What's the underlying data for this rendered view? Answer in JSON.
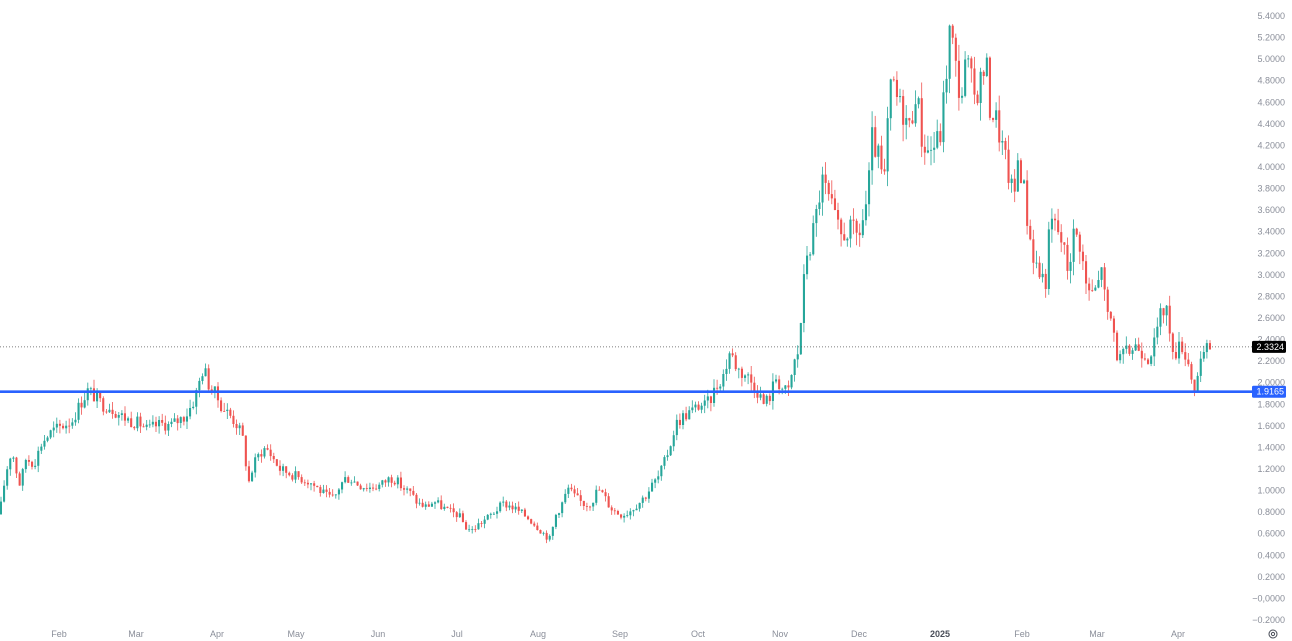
{
  "chart_data": {
    "type": "candlestick",
    "colors": {
      "up": "#26a69a",
      "down": "#ef5350",
      "support_line": "#2962ff",
      "current_badge": "#000000",
      "support_badge": "#2962ff"
    },
    "y_axis": {
      "ylim": [
        -0.2,
        5.4
      ],
      "ticks": [
        "5.4000",
        "5.2000",
        "5.0000",
        "4.8000",
        "4.6000",
        "4.4000",
        "4.2000",
        "4.0000",
        "3.8000",
        "3.6000",
        "3.4000",
        "3.2000",
        "3.0000",
        "2.8000",
        "2.6000",
        "2.4000",
        "2.2000",
        "2.0000",
        "1.8000",
        "1.6000",
        "1.4000",
        "1.2000",
        "1.0000",
        "0.8000",
        "0.6000",
        "0.4000",
        "0.2000",
        "−0,0000",
        "−0.2000"
      ]
    },
    "x_axis": {
      "months": [
        "Feb",
        "Mar",
        "Apr",
        "May",
        "Jun",
        "Jul",
        "Aug",
        "Sep",
        "Oct",
        "Nov",
        "Dec",
        "2025",
        "Feb",
        "Mar",
        "Apr"
      ],
      "emphasized": "2025"
    },
    "current_price": "2.3324",
    "support_level": "1.9165",
    "key_points": [
      [
        0,
        0.78
      ],
      [
        2,
        0.95
      ],
      [
        8,
        1.25
      ],
      [
        12,
        1.38
      ],
      [
        16,
        1.2
      ],
      [
        20,
        1.05
      ],
      [
        26,
        1.3
      ],
      [
        34,
        1.25
      ],
      [
        42,
        1.45
      ],
      [
        52,
        1.55
      ],
      [
        62,
        1.6
      ],
      [
        72,
        1.65
      ],
      [
        80,
        1.8
      ],
      [
        88,
        1.93
      ],
      [
        95,
        1.87
      ],
      [
        102,
        1.8
      ],
      [
        110,
        1.78
      ],
      [
        120,
        1.7
      ],
      [
        130,
        1.65
      ],
      [
        140,
        1.62
      ],
      [
        148,
        1.56
      ],
      [
        155,
        1.6
      ],
      [
        163,
        1.62
      ],
      [
        170,
        1.6
      ],
      [
        178,
        1.65
      ],
      [
        186,
        1.7
      ],
      [
        193,
        1.82
      ],
      [
        198,
        1.95
      ],
      [
        202,
        2.12
      ],
      [
        206,
        2.08
      ],
      [
        210,
        1.95
      ],
      [
        215,
        1.9
      ],
      [
        222,
        1.78
      ],
      [
        230,
        1.7
      ],
      [
        238,
        1.6
      ],
      [
        244,
        1.45
      ],
      [
        248,
        1.05
      ],
      [
        254,
        1.25
      ],
      [
        260,
        1.35
      ],
      [
        266,
        1.4
      ],
      [
        272,
        1.32
      ],
      [
        280,
        1.2
      ],
      [
        290,
        1.16
      ],
      [
        300,
        1.12
      ],
      [
        310,
        1.08
      ],
      [
        318,
        1.02
      ],
      [
        326,
        0.95
      ],
      [
        334,
        0.92
      ],
      [
        340,
        1.05
      ],
      [
        346,
        1.12
      ],
      [
        352,
        1.1
      ],
      [
        360,
        1.05
      ],
      [
        370,
        1.03
      ],
      [
        380,
        1.05
      ],
      [
        390,
        1.12
      ],
      [
        396,
        1.1
      ],
      [
        402,
        1.03
      ],
      [
        410,
        0.98
      ],
      [
        418,
        0.88
      ],
      [
        426,
        0.85
      ],
      [
        434,
        0.9
      ],
      [
        442,
        0.85
      ],
      [
        450,
        0.8
      ],
      [
        458,
        0.78
      ],
      [
        466,
        0.66
      ],
      [
        472,
        0.63
      ],
      [
        480,
        0.7
      ],
      [
        488,
        0.75
      ],
      [
        496,
        0.82
      ],
      [
        504,
        0.88
      ],
      [
        512,
        0.85
      ],
      [
        520,
        0.8
      ],
      [
        528,
        0.75
      ],
      [
        536,
        0.68
      ],
      [
        544,
        0.6
      ],
      [
        550,
        0.55
      ],
      [
        556,
        0.78
      ],
      [
        562,
        0.88
      ],
      [
        568,
        1.02
      ],
      [
        574,
        0.95
      ],
      [
        580,
        0.9
      ],
      [
        586,
        0.87
      ],
      [
        592,
        0.9
      ],
      [
        598,
        1.02
      ],
      [
        604,
        0.95
      ],
      [
        610,
        0.85
      ],
      [
        616,
        0.8
      ],
      [
        622,
        0.78
      ],
      [
        628,
        0.8
      ],
      [
        634,
        0.85
      ],
      [
        640,
        0.9
      ],
      [
        646,
        0.96
      ],
      [
        652,
        1.05
      ],
      [
        658,
        1.12
      ],
      [
        664,
        1.25
      ],
      [
        670,
        1.42
      ],
      [
        676,
        1.62
      ],
      [
        682,
        1.68
      ],
      [
        688,
        1.72
      ],
      [
        694,
        1.75
      ],
      [
        700,
        1.8
      ],
      [
        706,
        1.78
      ],
      [
        712,
        1.88
      ],
      [
        718,
        2.0
      ],
      [
        724,
        2.08
      ],
      [
        730,
        2.3
      ],
      [
        734,
        2.2
      ],
      [
        740,
        2.1
      ],
      [
        746,
        2.08
      ],
      [
        752,
        2.0
      ],
      [
        758,
        1.92
      ],
      [
        764,
        1.8
      ],
      [
        770,
        1.88
      ],
      [
        776,
        2.05
      ],
      [
        782,
        1.95
      ],
      [
        788,
        1.9
      ],
      [
        794,
        2.18
      ],
      [
        798,
        2.28
      ],
      [
        802,
        2.7
      ],
      [
        806,
        3.2
      ],
      [
        810,
        3.25
      ],
      [
        816,
        3.55
      ],
      [
        822,
        3.88
      ],
      [
        828,
        3.72
      ],
      [
        834,
        3.55
      ],
      [
        840,
        3.35
      ],
      [
        846,
        3.4
      ],
      [
        852,
        3.42
      ],
      [
        858,
        3.35
      ],
      [
        864,
        3.55
      ],
      [
        868,
        3.75
      ],
      [
        872,
        4.25
      ],
      [
        878,
        4.1
      ],
      [
        884,
        3.8
      ],
      [
        888,
        4.45
      ],
      [
        892,
        4.82
      ],
      [
        898,
        4.6
      ],
      [
        904,
        4.5
      ],
      [
        910,
        4.35
      ],
      [
        916,
        4.75
      ],
      [
        922,
        4.25
      ],
      [
        928,
        4.15
      ],
      [
        934,
        4.2
      ],
      [
        940,
        4.28
      ],
      [
        946,
        4.85
      ],
      [
        950,
        5.3
      ],
      [
        954,
        5.05
      ],
      [
        958,
        4.75
      ],
      [
        962,
        4.7
      ],
      [
        966,
        4.98
      ],
      [
        970,
        4.85
      ],
      [
        974,
        4.65
      ],
      [
        980,
        4.78
      ],
      [
        986,
        4.98
      ],
      [
        990,
        4.55
      ],
      [
        996,
        4.45
      ],
      [
        1002,
        4.2
      ],
      [
        1008,
        3.95
      ],
      [
        1014,
        3.7
      ],
      [
        1018,
        4.1
      ],
      [
        1024,
        3.8
      ],
      [
        1028,
        3.45
      ],
      [
        1034,
        3.15
      ],
      [
        1040,
        3.0
      ],
      [
        1046,
        2.95
      ],
      [
        1050,
        3.5
      ],
      [
        1056,
        3.45
      ],
      [
        1062,
        3.3
      ],
      [
        1068,
        3.05
      ],
      [
        1074,
        3.4
      ],
      [
        1080,
        3.3
      ],
      [
        1086,
        2.9
      ],
      [
        1092,
        2.82
      ],
      [
        1098,
        2.9
      ],
      [
        1102,
        3.15
      ],
      [
        1106,
        2.62
      ],
      [
        1112,
        2.58
      ],
      [
        1118,
        2.2
      ],
      [
        1124,
        2.25
      ],
      [
        1130,
        2.3
      ],
      [
        1136,
        2.35
      ],
      [
        1142,
        2.3
      ],
      [
        1148,
        2.25
      ],
      [
        1154,
        2.35
      ],
      [
        1160,
        2.6
      ],
      [
        1166,
        2.75
      ],
      [
        1170,
        2.38
      ],
      [
        1176,
        2.3
      ],
      [
        1182,
        2.35
      ],
      [
        1188,
        2.2
      ],
      [
        1194,
        1.95
      ],
      [
        1198,
        2.05
      ],
      [
        1204,
        2.28
      ],
      [
        1210,
        2.33
      ]
    ]
  }
}
